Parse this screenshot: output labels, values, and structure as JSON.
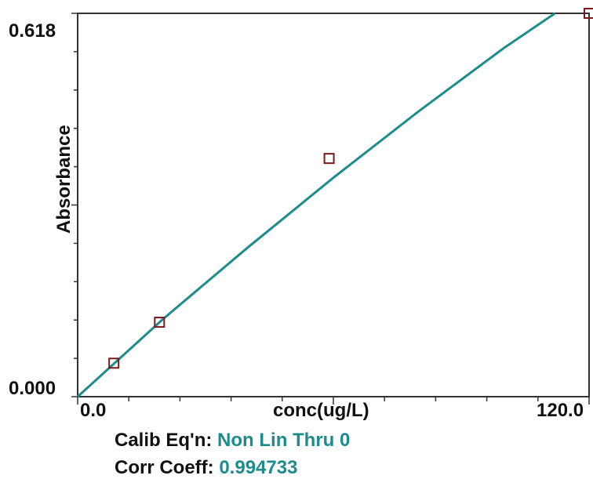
{
  "chart_data": {
    "type": "scatter",
    "title": "",
    "xlabel": "conc(ug/L)",
    "ylabel": "Absorbance",
    "xlim": [
      0.0,
      120.0
    ],
    "ylim": [
      0.0,
      0.618
    ],
    "x_tick_labels": [
      "0.0",
      "120.0"
    ],
    "y_tick_labels": [
      "0.000",
      "0.618"
    ],
    "grid": false,
    "series": [
      {
        "points": [
          {
            "x": 8.5,
            "y": 0.054
          },
          {
            "x": 19.2,
            "y": 0.12
          },
          {
            "x": 59.0,
            "y": 0.384
          },
          {
            "x": 120.0,
            "y": 0.618
          }
        ]
      }
    ],
    "fit_curve": {
      "equation_type": "Non Lin Thru 0",
      "points": [
        {
          "x": 0,
          "y": 0.0
        },
        {
          "x": 20,
          "y": 0.125
        },
        {
          "x": 40,
          "y": 0.241
        },
        {
          "x": 60,
          "y": 0.353
        },
        {
          "x": 80,
          "y": 0.46
        },
        {
          "x": 100,
          "y": 0.562
        },
        {
          "x": 112,
          "y": 0.618
        }
      ]
    },
    "colors": {
      "fit_line": "#1c8c8c",
      "marker": "#7a1a1a",
      "axis": "#333333"
    }
  },
  "info": {
    "calib_label": "Calib Eq'n:",
    "calib_value": "Non Lin Thru 0",
    "corr_label": "Corr Coeff:",
    "corr_value": "0.994733"
  }
}
